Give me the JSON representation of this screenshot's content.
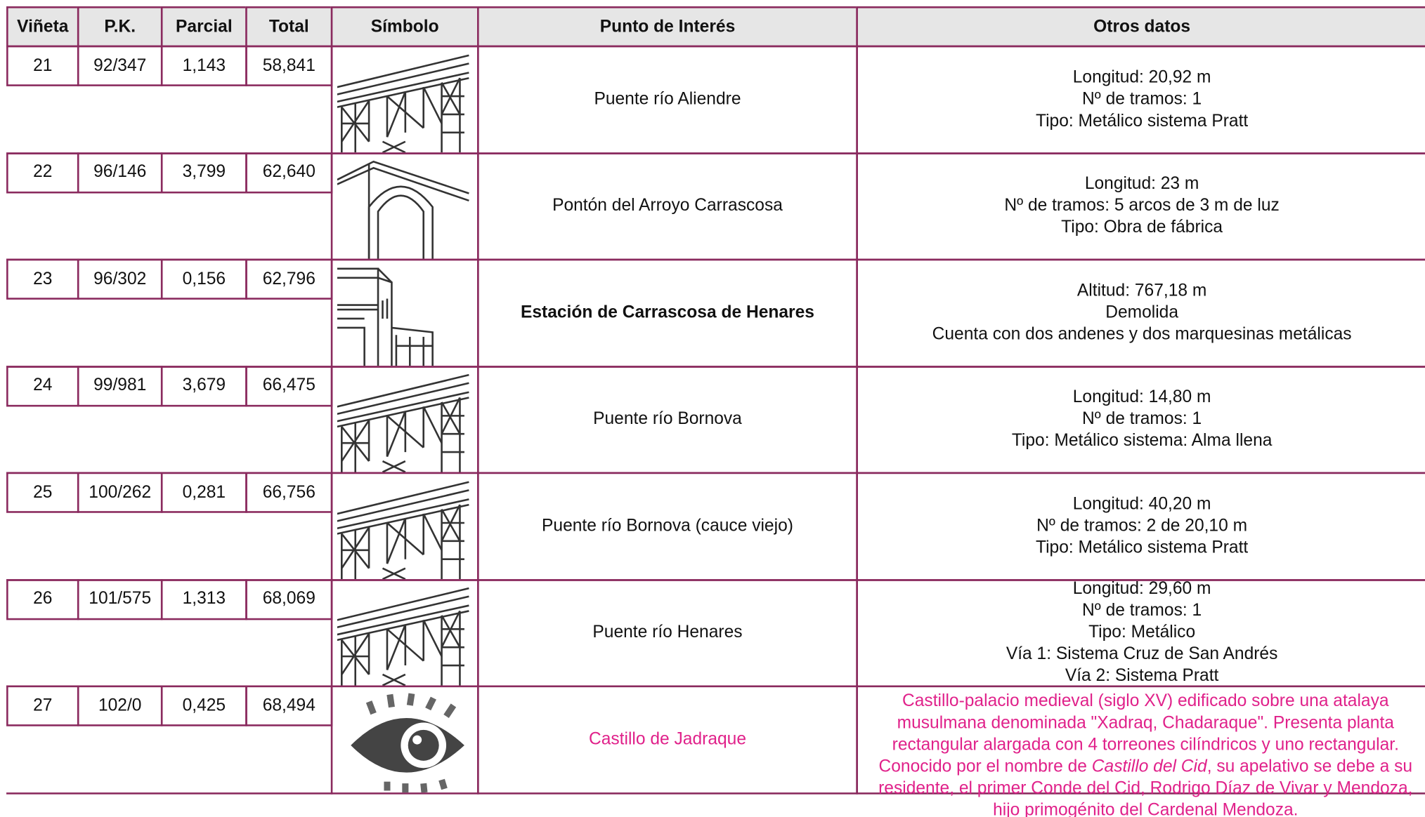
{
  "table": {
    "header": [
      "Viñeta",
      "P.K.",
      "Parcial",
      "Total",
      "Símbolo",
      "Punto de Interés",
      "Otros datos"
    ],
    "rows": [
      {
        "vineta": "21",
        "pk": "92/347",
        "parcial": "1,143",
        "total": "58,841",
        "punto": "Puente río Aliendre",
        "otros": [
          "Longitud: 20,92 m",
          "Nº de tramos: 1",
          "Tipo: Metálico sistema Pratt"
        ]
      },
      {
        "vineta": "22",
        "pk": "96/146",
        "parcial": "3,799",
        "total": "62,640",
        "punto": "Pontón del Arroyo Carrascosa",
        "otros": [
          "Longitud: 23 m",
          "Nº de tramos: 5 arcos de 3 m de luz",
          "Tipo: Obra de fábrica"
        ]
      },
      {
        "vineta": "23",
        "pk": "96/302",
        "parcial": "0,156",
        "total": "62,796",
        "punto": "Estación de Carrascosa de Henares",
        "otros": [
          "Altitud: 767,18 m",
          "Demolida",
          "Cuenta con dos andenes y dos marquesinas metálicas"
        ]
      },
      {
        "vineta": "24",
        "pk": "99/981",
        "parcial": "3,679",
        "total": "66,475",
        "punto": "Puente río Bornova",
        "otros": [
          "Longitud: 14,80 m",
          "Nº de tramos: 1",
          "Tipo: Metálico sistema: Alma llena"
        ]
      },
      {
        "vineta": "25",
        "pk": "100/262",
        "parcial": "0,281",
        "total": "66,756",
        "punto": "Puente río Bornova (cauce viejo)",
        "otros": [
          "Longitud: 40,20 m",
          "Nº de tramos: 2 de 20,10 m",
          "Tipo: Metálico sistema Pratt"
        ]
      },
      {
        "vineta": "26",
        "pk": "101/575",
        "parcial": "1,313",
        "total": "68,069",
        "punto": "Puente río Henares",
        "otros": [
          "Longitud: 29,60 m",
          "Nº de tramos: 1",
          "Tipo: Metálico",
          "Vía 1: Sistema Cruz de San Andrés",
          "Vía 2: Sistema Pratt"
        ]
      },
      {
        "vineta": "27",
        "pk": "102/0",
        "parcial": "0,425",
        "total": "68,494",
        "punto": "Castillo de Jadraque",
        "otros_text": [
          "Castillo-palacio medieval (siglo XV) edificado sobre una atalaya musulmana denominada \"Xadraq, Chadaraque\". Presenta planta rectangular alargada con 4 torreones cilíndricos y uno rectangular. Conocido por el nombre de ",
          "Castillo del Cid",
          ", su apelativo se debe a su residente, el primer Conde del Cid, Rodrigo Díaz de Vivar y Mendoza, hijo primogénito del Cardenal Mendoza."
        ]
      }
    ]
  }
}
